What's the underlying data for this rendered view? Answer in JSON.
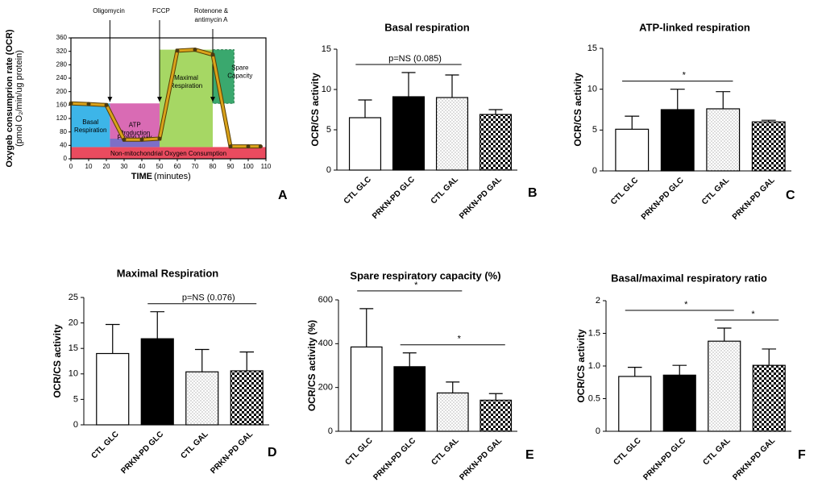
{
  "chart_data": [
    {
      "type": "line",
      "panel": "A",
      "ylabel": "Oxygeb consumprion rate (OCR)",
      "ylabel_unit": "(pmol O₂/min/ug protein)",
      "xlabel": "TIME",
      "xlabel_unit": "(minutes)",
      "x": [
        0,
        10,
        20,
        30,
        40,
        50,
        60,
        70,
        80,
        90,
        100,
        107
      ],
      "values": [
        165,
        163,
        160,
        57,
        57,
        60,
        322,
        325,
        310,
        37,
        37,
        37
      ],
      "color": "#d9a21b",
      "xlim": [
        0,
        110
      ],
      "xticks": [
        0,
        10,
        20,
        30,
        40,
        50,
        60,
        70,
        80,
        90,
        100,
        110
      ],
      "ylim": [
        0,
        360
      ],
      "yticks": [
        0,
        40,
        80,
        120,
        160,
        200,
        240,
        280,
        320,
        360
      ],
      "injections": [
        [
          "Oligomycin"
        ],
        [
          "FCCP"
        ],
        [
          "Rotenone &",
          "antimycin A"
        ]
      ],
      "regions": [
        [
          "Basal",
          "Respiration"
        ],
        [
          "ATP",
          "Production"
        ],
        [
          "Proton Leak"
        ],
        [
          "Maximal",
          "Respiration"
        ],
        [
          "Spare",
          "Capacity"
        ],
        [
          "Non-mitochondrial Oxygen Consumption"
        ]
      ]
    },
    {
      "type": "bar",
      "panel": "B",
      "title": "Basal respiration",
      "ylabel": "OCR/CS activity",
      "categories": [
        "CTL GLC",
        "PRKN-PD GLC",
        "CTL GAL",
        "PRKN-PD GAL"
      ],
      "values": [
        6.5,
        9.1,
        9.0,
        6.9
      ],
      "errors": [
        2.2,
        3.0,
        2.8,
        0.6
      ],
      "fills": [
        "white",
        "black",
        "dots",
        "checker"
      ],
      "ylim": [
        0,
        15
      ],
      "yticks": [
        0,
        5,
        10,
        15
      ],
      "annotations": [
        {
          "text": "p=NS (0.085)",
          "span": [
            "CTL GLC",
            "CTL GAL"
          ]
        }
      ]
    },
    {
      "type": "bar",
      "panel": "C",
      "title": "ATP-linked respiration",
      "ylabel": "OCR/CS activity",
      "categories": [
        "CTL GLC",
        "PRKN-PD GLC",
        "CTL GAL",
        "PRKN-PD GAL"
      ],
      "values": [
        5.1,
        7.5,
        7.6,
        6.0
      ],
      "errors": [
        1.6,
        2.5,
        2.1,
        0.2
      ],
      "fills": [
        "white",
        "black",
        "dots",
        "checker"
      ],
      "ylim": [
        0,
        15
      ],
      "yticks": [
        0,
        5,
        10,
        15
      ],
      "annotations": [
        {
          "text": "*",
          "span": [
            "CTL GLC",
            "CTL GAL"
          ]
        }
      ]
    },
    {
      "type": "bar",
      "panel": "D",
      "title": "Maximal Respiration",
      "ylabel": "OCR/CS activity",
      "categories": [
        "CTL GLC",
        "PRKN-PD GLC",
        "CTL GAL",
        "PRKN-PD GAL"
      ],
      "values": [
        14.0,
        16.9,
        10.4,
        10.6
      ],
      "errors": [
        5.7,
        5.3,
        4.4,
        3.7
      ],
      "fills": [
        "white",
        "black",
        "dots",
        "checker"
      ],
      "ylim": [
        0,
        25
      ],
      "yticks": [
        0,
        5,
        10,
        15,
        20,
        25
      ],
      "annotations": [
        {
          "text": "p=NS (0.076)",
          "span": [
            "PRKN-PD GLC",
            "PRKN-PD GAL"
          ]
        }
      ]
    },
    {
      "type": "bar",
      "panel": "E",
      "title": "Spare respiratory capacity (%)",
      "ylabel": "OCR/CS activity (%)",
      "categories": [
        "CTL GLC",
        "PRKN-PD GLC",
        "CTL GAL",
        "PRKN-PD GAL"
      ],
      "values": [
        385,
        295,
        175,
        142
      ],
      "errors": [
        175,
        63,
        50,
        30
      ],
      "fills": [
        "white",
        "black",
        "dots",
        "checker"
      ],
      "ylim": [
        0,
        600
      ],
      "yticks": [
        0,
        200,
        400,
        600
      ],
      "annotations": [
        {
          "text": "*",
          "span": [
            "CTL GLC",
            "CTL GAL"
          ]
        },
        {
          "text": "*",
          "span": [
            "PRKN-PD GLC",
            "PRKN-PD GAL"
          ]
        }
      ]
    },
    {
      "type": "bar",
      "panel": "F",
      "title": "Basal/maximal respiratory ratio",
      "ylabel": "OCR/CS activity",
      "categories": [
        "CTL GLC",
        "PRKN-PD GLC",
        "CTL GAL",
        "PRKN-PD GAL"
      ],
      "values": [
        0.84,
        0.86,
        1.38,
        1.01
      ],
      "errors": [
        0.14,
        0.15,
        0.2,
        0.25
      ],
      "fills": [
        "white",
        "black",
        "dots",
        "checker"
      ],
      "ylim": [
        0,
        2
      ],
      "yticks": [
        0,
        0.5,
        {
          "value": 1,
          "label": "1.0"
        },
        1.5,
        2
      ],
      "annotations": [
        {
          "text": "*",
          "span": [
            "CTL GLC",
            "CTL GAL"
          ]
        },
        {
          "text": "*",
          "span": [
            "CTL GAL",
            "PRKN-PD GAL"
          ]
        }
      ]
    }
  ]
}
